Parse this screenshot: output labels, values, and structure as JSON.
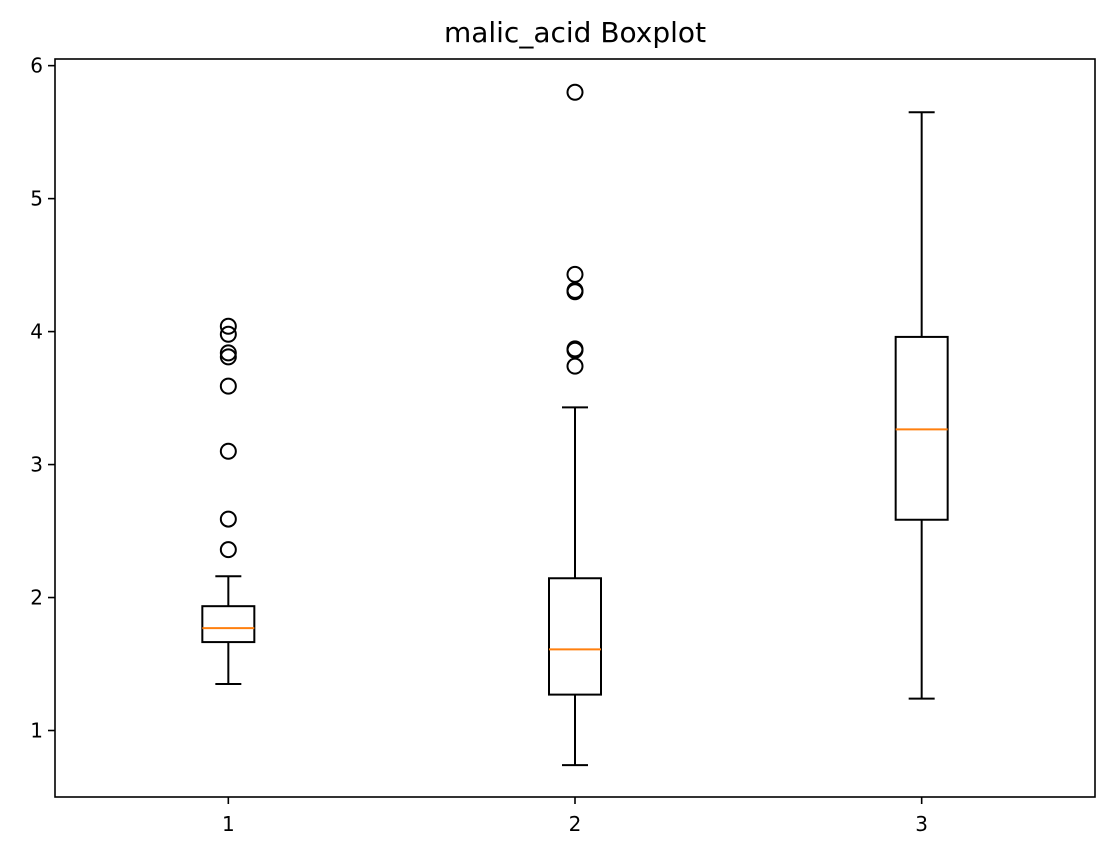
{
  "chart_data": {
    "type": "boxplot",
    "title": "malic_acid Boxplot",
    "xlabel": "",
    "ylabel": "",
    "categories": [
      "1",
      "2",
      "3"
    ],
    "ylim": [
      0.5,
      6.05
    ],
    "yticks": [
      1,
      2,
      3,
      4,
      5,
      6
    ],
    "grid": false,
    "legend": "none",
    "colors": {
      "box": "#000000",
      "median": "#ff7f0e",
      "flier": "#000000"
    },
    "boxes": [
      {
        "label": "1",
        "whisker_low": 1.35,
        "q1": 1.665,
        "median": 1.77,
        "q3": 1.935,
        "whisker_high": 2.16,
        "fliers": [
          2.36,
          2.59,
          3.1,
          3.59,
          3.81,
          3.84,
          3.98,
          4.04
        ]
      },
      {
        "label": "2",
        "whisker_low": 0.74,
        "q1": 1.27,
        "median": 1.61,
        "q3": 2.145,
        "whisker_high": 3.43,
        "fliers": [
          3.74,
          3.86,
          3.87,
          4.3,
          4.31,
          4.43,
          5.8
        ]
      },
      {
        "label": "3",
        "whisker_low": 1.24,
        "q1": 2.585,
        "median": 3.265,
        "q3": 3.96,
        "whisker_high": 5.65,
        "fliers": []
      }
    ]
  }
}
